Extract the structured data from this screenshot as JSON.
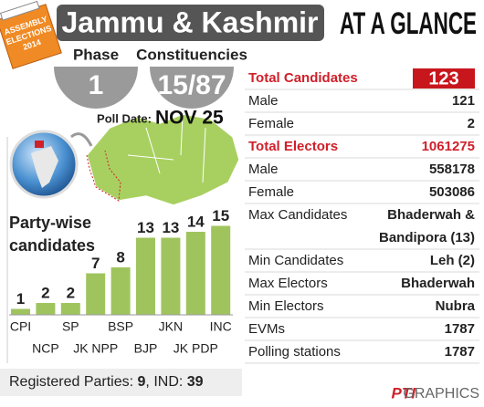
{
  "header": {
    "badge": [
      "ASSEMBLY",
      "ELECTIONS",
      "2014"
    ],
    "title": "Jammu & Kashmir",
    "subtitle": "AT A GLANCE"
  },
  "stats": [
    {
      "label": "Phase",
      "value": 1
    },
    {
      "label": "Constituencies",
      "value": "15/87"
    }
  ],
  "poll_date": {
    "label": "Poll Date:",
    "value": "NOV 25"
  },
  "chart": {
    "type": "bar",
    "title": [
      "Party-wise",
      "candidates"
    ],
    "categories": [
      "CPI",
      "NCP",
      "SP",
      "JK NPP",
      "BSP",
      "BJP",
      "JKN",
      "JK PDP",
      "INC"
    ],
    "values": [
      1,
      2,
      2,
      7,
      8,
      13,
      13,
      14,
      15
    ],
    "color": "#9fc45e"
  },
  "table": {
    "rows": [
      {
        "label": "Total Candidates",
        "value": 123,
        "highlight": true,
        "boxed": true
      },
      {
        "label": "Male",
        "value": 121
      },
      {
        "label": "Female",
        "value": 2
      },
      {
        "label": "Total Electors",
        "value": 1061275,
        "highlight": true
      },
      {
        "label": "Male",
        "value": 558178
      },
      {
        "label": "Female",
        "value": 503086
      },
      {
        "label": "Max Candidates",
        "value": [
          "Bhaderwah &",
          "Bandipora  (13)"
        ]
      },
      {
        "label": "Min Candidates",
        "value": "Leh  (2)"
      },
      {
        "label": "Max Electors",
        "value": "Bhaderwah"
      },
      {
        "label": "Min Electors",
        "value": "Nubra"
      },
      {
        "label": "EVMs",
        "value": 1787
      },
      {
        "label": "Polling stations",
        "value": 1787
      }
    ]
  },
  "footer": {
    "parts": [
      "Registered Parties: ",
      "9",
      ", IND: ",
      "39"
    ]
  },
  "credit": {
    "logo": "PTI",
    "text": "GRAPHICS"
  }
}
